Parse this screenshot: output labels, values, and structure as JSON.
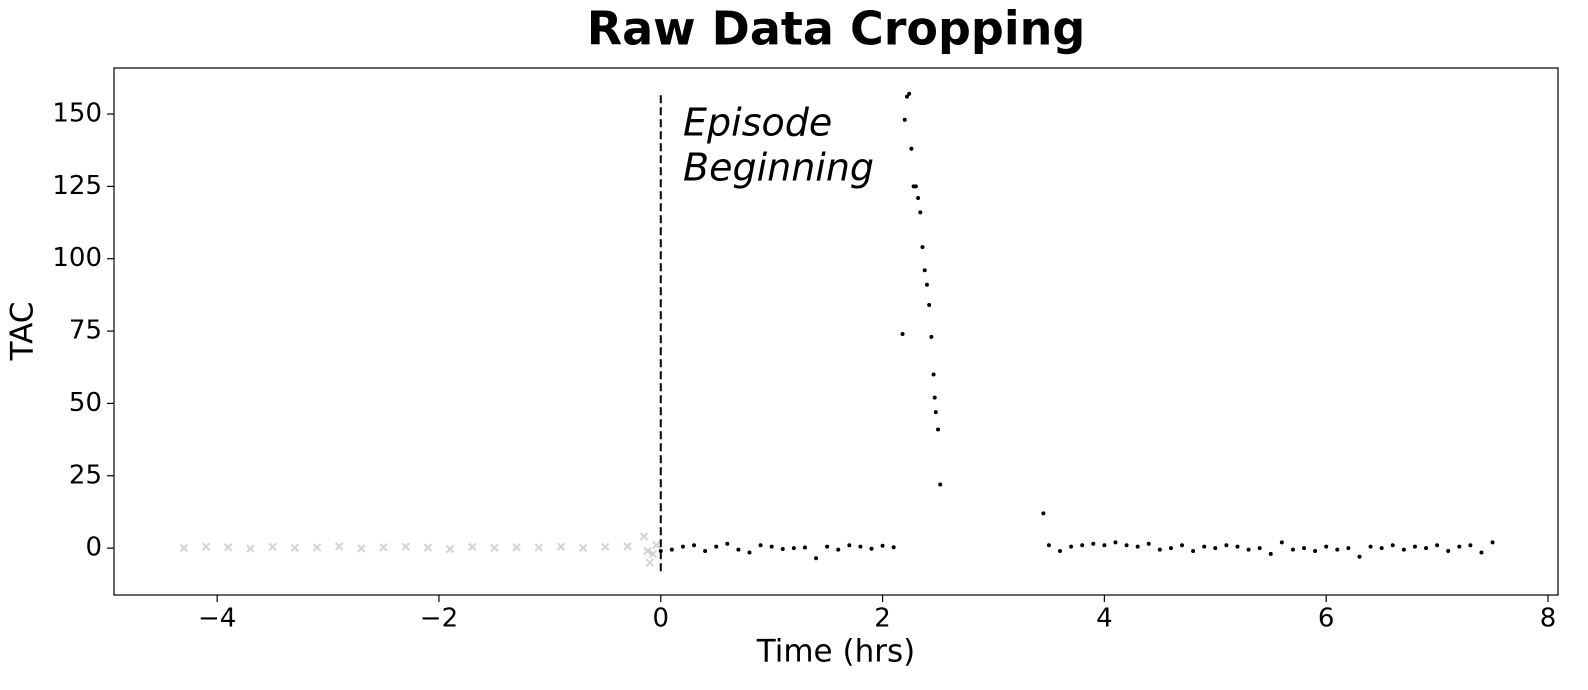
{
  "chart_data": {
    "type": "scatter",
    "title": "Raw Data Cropping",
    "x_label": "Time (hrs)",
    "y_label": "TAC",
    "annotation": [
      "Episode",
      "Beginning"
    ],
    "xlim": [
      -4.93,
      8.09
    ],
    "ylim": [
      -16.2,
      165.9
    ],
    "xticks": [
      {
        "value": -4,
        "label": "−4"
      },
      {
        "value": -2,
        "label": "−2"
      },
      0,
      2,
      4,
      6,
      8
    ],
    "yticks": [
      0,
      25,
      50,
      75,
      100,
      125,
      150
    ],
    "vline": {
      "x": 0,
      "ymin": -8,
      "ymax": 157,
      "color": "#000000"
    },
    "series": [
      {
        "marker": "x",
        "color": "#d3d3d3",
        "x": [
          -4.3,
          -4.1,
          -3.9,
          -3.7,
          -3.5,
          -3.3,
          -3.1,
          -2.9,
          -2.7,
          -2.5,
          -2.3,
          -2.1,
          -1.9,
          -1.7,
          -1.5,
          -1.3,
          -1.1,
          -0.9,
          -0.7,
          -0.5,
          -0.3,
          -0.15,
          -0.12,
          -0.1,
          -0.07,
          -0.04
        ],
        "values": [
          0,
          0.5,
          0.3,
          -0.2,
          0.4,
          0.1,
          0.2,
          0.6,
          -0.1,
          0.3,
          0.5,
          0.2,
          -0.3,
          0.4,
          0.1,
          0.3,
          0.2,
          0.5,
          0.1,
          0.4,
          0.6,
          4,
          -1,
          -5,
          -2,
          1
        ]
      },
      {
        "marker": "o",
        "color": "#000000",
        "x": [
          0,
          0.1,
          0.2,
          0.3,
          0.4,
          0.5,
          0.6,
          0.7,
          0.8,
          0.9,
          1,
          1.1,
          1.2,
          1.3,
          1.4,
          1.5,
          1.6,
          1.7,
          1.8,
          1.9,
          2,
          2.1,
          2.18,
          2.2,
          2.22,
          2.24,
          2.26,
          2.28,
          2.3,
          2.32,
          2.34,
          2.36,
          2.38,
          2.4,
          2.42,
          2.44,
          2.46,
          2.47,
          2.48,
          2.5,
          2.52,
          3.45,
          3.5,
          3.6,
          3.7,
          3.8,
          3.9,
          4,
          4.1,
          4.2,
          4.3,
          4.4,
          4.5,
          4.6,
          4.7,
          4.8,
          4.9,
          5,
          5.1,
          5.2,
          5.3,
          5.4,
          5.5,
          5.6,
          5.7,
          5.8,
          5.9,
          6,
          6.1,
          6.2,
          6.3,
          6.4,
          6.5,
          6.6,
          6.7,
          6.8,
          6.9,
          7,
          7.1,
          7.2,
          7.3,
          7.4,
          7.5
        ],
        "values": [
          -1,
          -0.5,
          0.5,
          1,
          -1,
          0.5,
          1.5,
          -0.5,
          -1.5,
          1,
          0.5,
          -0.3,
          0,
          0.2,
          -3.5,
          0.5,
          -0.5,
          1,
          0.5,
          -0.2,
          0.8,
          0.3,
          74,
          148,
          156,
          157,
          138,
          125,
          125,
          121,
          116,
          104,
          96,
          91,
          84,
          73,
          60,
          52,
          47,
          41,
          22,
          12,
          1,
          -1,
          0.5,
          1,
          1.5,
          1,
          2,
          1,
          0.5,
          1.5,
          -0.5,
          0,
          1,
          -1,
          0.5,
          0,
          1,
          0.5,
          -0.5,
          0,
          -2,
          2,
          -0.5,
          0,
          -1,
          0.5,
          -0.5,
          0,
          -3,
          0.5,
          0,
          1,
          -0.5,
          0.5,
          0,
          1,
          -1,
          0.5,
          1,
          -1.5,
          2
        ]
      }
    ]
  }
}
